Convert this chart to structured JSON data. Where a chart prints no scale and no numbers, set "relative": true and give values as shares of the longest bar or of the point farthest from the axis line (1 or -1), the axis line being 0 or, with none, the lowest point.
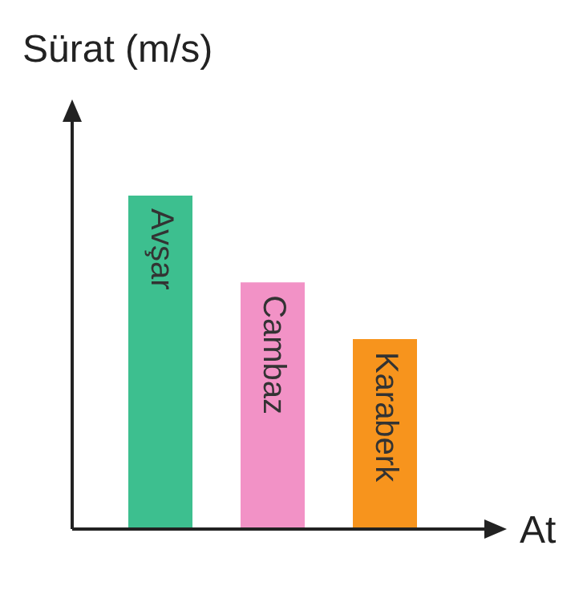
{
  "chart_data": {
    "type": "bar",
    "xlabel": "At",
    "ylabel": "Sürat (m/s)",
    "relative": true,
    "categories": [
      "Avşar",
      "Cambaz",
      "Karaberk"
    ],
    "values": [
      1,
      0.74,
      0.57
    ],
    "colors": [
      "#3dbf8f",
      "#f292c6",
      "#f7941d"
    ],
    "legend": false
  }
}
